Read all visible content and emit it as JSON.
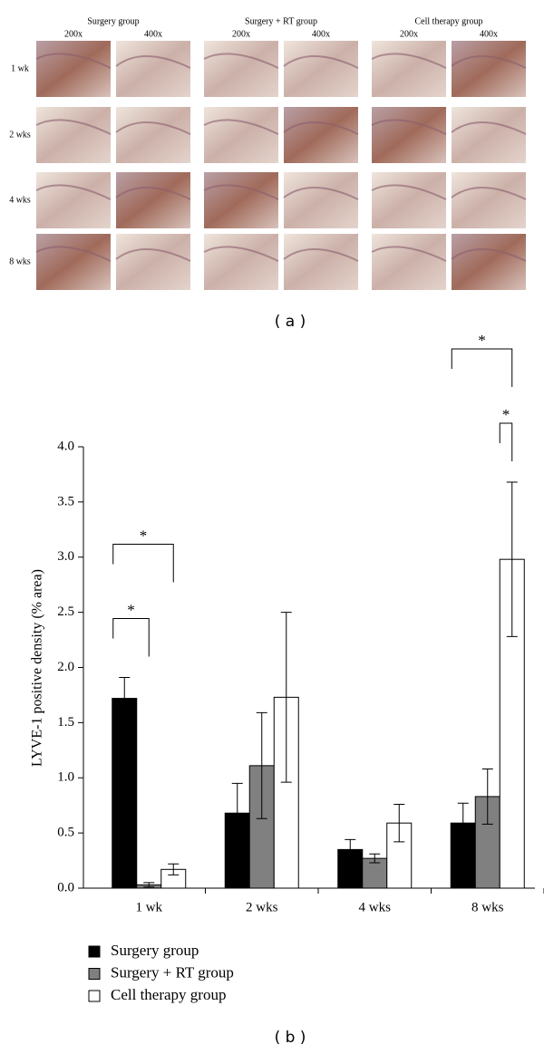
{
  "panel_a": {
    "groups": [
      {
        "name": "Surgery group",
        "magnifications": [
          "200x",
          "400x"
        ]
      },
      {
        "name": "Surgery + RT group",
        "magnifications": [
          "200x",
          "400x"
        ]
      },
      {
        "name": "Cell therapy group",
        "magnifications": [
          "200x",
          "400x"
        ]
      }
    ],
    "rows": [
      "1 wk",
      "2 wks",
      "4 wks",
      "8 wks"
    ],
    "label": "( a )"
  },
  "chart_data": {
    "type": "bar",
    "y_label": "LYVE-1 positive density (% area)",
    "categories": [
      "1 wk",
      "2 wks",
      "4 wks",
      "8 wks"
    ],
    "series": [
      {
        "name": "Surgery group",
        "color": "#000000",
        "values": [
          1.72,
          0.68,
          0.35,
          0.59
        ],
        "errors": [
          0.19,
          0.27,
          0.09,
          0.18
        ]
      },
      {
        "name": "Surgery + RT group",
        "color": "#808080",
        "values": [
          0.03,
          1.11,
          0.27,
          0.83
        ],
        "errors": [
          0.02,
          0.48,
          0.04,
          0.25
        ]
      },
      {
        "name": "Cell therapy group",
        "color": "#ffffff",
        "values": [
          0.17,
          1.73,
          0.59,
          2.98
        ],
        "errors": [
          0.05,
          0.77,
          0.17,
          0.7
        ]
      }
    ],
    "ylim": [
      0,
      4
    ],
    "yticks": [
      {
        "value": 0,
        "label": "0.0"
      },
      0.5,
      {
        "value": 1,
        "label": "1.0"
      },
      1.5,
      {
        "value": 2,
        "label": "2.0"
      },
      2.5,
      {
        "value": 3,
        "label": "3.0"
      },
      3.5,
      {
        "value": 4,
        "label": "4.0"
      }
    ],
    "significance": [
      {
        "label": "*",
        "category": 0,
        "series": [
          0,
          1
        ]
      },
      {
        "label": "*",
        "category": 0,
        "series": [
          0,
          2
        ]
      },
      {
        "label": "*",
        "category": 3,
        "series": [
          1,
          2
        ]
      },
      {
        "label": "*",
        "category": 3,
        "series": [
          0,
          2
        ]
      }
    ],
    "panel_label": "( b )"
  }
}
